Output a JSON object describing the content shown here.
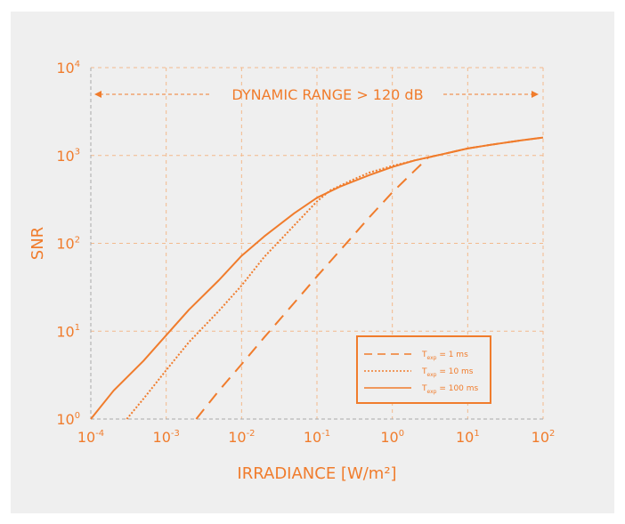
{
  "chart_data": {
    "type": "line",
    "xscale": "log",
    "yscale": "log",
    "xlim": [
      0.0001,
      100
    ],
    "ylim": [
      1,
      10000
    ],
    "xlabel": "IRRADIANCE [W/m²]",
    "ylabel": "SNR",
    "grid": true,
    "x_ticks": [
      {
        "value": 0.0001,
        "base": "10",
        "exp": "-4"
      },
      {
        "value": 0.001,
        "base": "10",
        "exp": "-3"
      },
      {
        "value": 0.01,
        "base": "10",
        "exp": "-2"
      },
      {
        "value": 0.1,
        "base": "10",
        "exp": "-1"
      },
      {
        "value": 1,
        "base": "10",
        "exp": "0"
      },
      {
        "value": 10,
        "base": "10",
        "exp": "1"
      },
      {
        "value": 100,
        "base": "10",
        "exp": "2"
      }
    ],
    "y_ticks": [
      {
        "value": 1,
        "base": "10",
        "exp": "0"
      },
      {
        "value": 10,
        "base": "10",
        "exp": "1"
      },
      {
        "value": 100,
        "base": "10",
        "exp": "2"
      },
      {
        "value": 1000,
        "base": "10",
        "exp": "3"
      },
      {
        "value": 10000,
        "base": "10",
        "exp": "4"
      }
    ],
    "annotation": "DYNAMIC RANGE > 120 dB",
    "legend_position": "bottom-right",
    "color": "#f07c2c",
    "series": [
      {
        "name": "T = 1 ms",
        "sym": "T",
        "sub": "exp",
        "rest": " = 1 ms",
        "dash": "dashed",
        "x": [
          0.0025,
          0.005,
          0.01,
          0.02,
          0.05,
          0.1,
          0.2,
          0.5,
          1,
          2,
          3,
          5,
          10,
          20,
          50,
          100
        ],
        "y": [
          1,
          2.1,
          4.2,
          8.5,
          21,
          42,
          82,
          200,
          380,
          680,
          950,
          1050,
          1200,
          1320,
          1480,
          1600
        ]
      },
      {
        "name": "T = 10 ms",
        "sym": "T",
        "sub": "exp",
        "rest": " = 10 ms",
        "dash": "dotted",
        "x": [
          0.0003,
          0.0005,
          0.001,
          0.002,
          0.005,
          0.01,
          0.02,
          0.05,
          0.1,
          0.15,
          0.2,
          0.3,
          0.5,
          1,
          2,
          3,
          5,
          10,
          20,
          50,
          100
        ],
        "y": [
          1,
          1.7,
          3.6,
          7.5,
          17,
          33,
          70,
          160,
          300,
          400,
          450,
          530,
          640,
          760,
          880,
          950,
          1050,
          1200,
          1320,
          1480,
          1600
        ]
      },
      {
        "name": "T = 100 ms",
        "sym": "T",
        "sub": "exp",
        "rest": " = 100 ms",
        "dash": "solid",
        "x": [
          0.0001,
          0.0002,
          0.0005,
          0.001,
          0.002,
          0.005,
          0.01,
          0.02,
          0.05,
          0.1,
          0.2,
          0.5,
          1,
          2,
          5,
          10,
          20,
          50,
          100
        ],
        "y": [
          1,
          2.1,
          4.6,
          9,
          17.5,
          38,
          72,
          120,
          220,
          330,
          440,
          600,
          740,
          880,
          1050,
          1200,
          1320,
          1480,
          1600
        ]
      }
    ]
  }
}
